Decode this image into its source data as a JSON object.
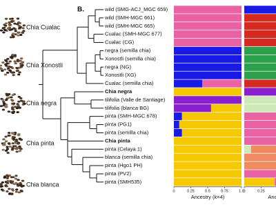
{
  "figure_label": "B.",
  "groups": [
    "Chia Cualac",
    "Chia Xonostli",
    "Chia negra",
    "Chia pinta",
    "Chia blanca"
  ],
  "bold_tips": [
    10,
    16
  ],
  "chart_data": [
    {
      "type": "bar",
      "orientation": "horizontal",
      "stacked": true,
      "xlabel": "Ancestry (k=4)",
      "categories": [
        "wild (SMG-ACJ_MGC 659)",
        "wild (SMH-MGC 661)",
        "wild (SMH-MGC 665)",
        "Cualac (SMH-MGC 677)",
        "Cualac (CG)",
        "negra (semilla chia)",
        "Xonostli (semilla chia)",
        "negra (NG)",
        "Xonostli (XG)",
        "Cualac (semilla chia)",
        "Chia negra",
        "tilifolia (Valle de Santiage)",
        "tilifolia (blanca BG)",
        "pinta (SMH-MGC 678)",
        "pinta (PG1)",
        "pinta (semilla chia)",
        "Chia pinta",
        "pinta (Celaya 1)",
        "blanca (semilla chia)",
        "pinta (Hgo1 PH)",
        "pinta (PV2)",
        "pinta (SMH535)"
      ],
      "xlim": [
        0,
        1
      ],
      "xticks": [
        0,
        0.25,
        0.5,
        0.75,
        {
          "value": 1,
          "label": "1.0"
        }
      ],
      "series": [
        {
          "color": "#1a1ae6",
          "values": [
            0,
            0,
            0,
            0,
            0,
            1,
            1,
            1,
            1,
            0.42,
            0,
            0,
            0,
            0.12,
            0.08,
            0.12,
            0,
            0,
            0,
            0,
            0,
            0
          ]
        },
        {
          "color": "#e862a4",
          "values": [
            1,
            1,
            1,
            1,
            1,
            0,
            0,
            0,
            0,
            0.58,
            0,
            0,
            0,
            0,
            0,
            0,
            0,
            0,
            0,
            0,
            0,
            0
          ]
        },
        {
          "color": "#8a1fd0",
          "values": [
            0,
            0,
            0,
            0,
            0,
            0,
            0,
            0,
            0,
            0,
            0,
            1,
            0.55,
            0,
            0,
            0,
            0,
            0,
            0,
            0,
            0,
            0
          ]
        },
        {
          "color": "#f6c800",
          "values": [
            0,
            0,
            0,
            0,
            0,
            0,
            0,
            0,
            0,
            0,
            1,
            0,
            0.45,
            0.88,
            0.92,
            0.88,
            1,
            1,
            1,
            1,
            1,
            1
          ]
        }
      ]
    },
    {
      "type": "bar",
      "orientation": "horizontal",
      "stacked": true,
      "xlabel": "Ancestry",
      "xlim": [
        0,
        1
      ],
      "xticks": [
        0,
        0.25
      ],
      "series": [
        {
          "color": "#1a1ae6",
          "values": [
            1,
            0,
            0,
            0,
            0,
            0,
            0,
            0,
            0,
            0,
            0,
            0,
            0,
            0,
            0,
            0,
            0,
            0,
            0,
            0,
            0,
            0
          ]
        },
        {
          "color": "#d42a20",
          "values": [
            0,
            1,
            1,
            1,
            1,
            0,
            0,
            0,
            0,
            0.7,
            0,
            0,
            0,
            0,
            0,
            0,
            0,
            0,
            0,
            0,
            0,
            0
          ]
        },
        {
          "color": "#2ca04a",
          "values": [
            0,
            0,
            0,
            0,
            0,
            1,
            1,
            1,
            1,
            0.3,
            0,
            0,
            0,
            0,
            0,
            0,
            0,
            0,
            0,
            0,
            0,
            0
          ]
        },
        {
          "color": "#8a1fd0",
          "values": [
            0,
            0,
            0,
            0,
            0,
            0,
            0,
            0,
            0,
            0,
            1,
            0,
            0,
            0,
            0,
            0,
            0,
            0,
            0,
            0,
            0,
            0
          ]
        },
        {
          "color": "#cfe8b8",
          "values": [
            0,
            0,
            0,
            0,
            0,
            0,
            0,
            0,
            0,
            0,
            0,
            1,
            1,
            0,
            0,
            0,
            0,
            0.1,
            0,
            0,
            0,
            0
          ]
        },
        {
          "color": "#f6c800",
          "values": [
            0,
            0,
            0,
            0,
            0,
            0,
            0,
            0,
            0,
            0,
            0,
            0,
            0,
            0,
            0,
            0,
            0,
            0,
            0,
            0,
            0,
            0.45
          ]
        },
        {
          "color": "#e862a4",
          "values": [
            0,
            0,
            0,
            0,
            0,
            0,
            0,
            0,
            0,
            0,
            0,
            0,
            0,
            1,
            1,
            1,
            1,
            0,
            0,
            0,
            0.5,
            0.55
          ]
        },
        {
          "color": "#f08a60",
          "values": [
            0,
            0,
            0,
            0,
            0,
            0,
            0,
            0,
            0,
            0,
            0,
            0,
            0,
            0,
            0,
            0,
            0,
            0.9,
            1,
            1,
            0.5,
            0
          ]
        }
      ]
    }
  ]
}
